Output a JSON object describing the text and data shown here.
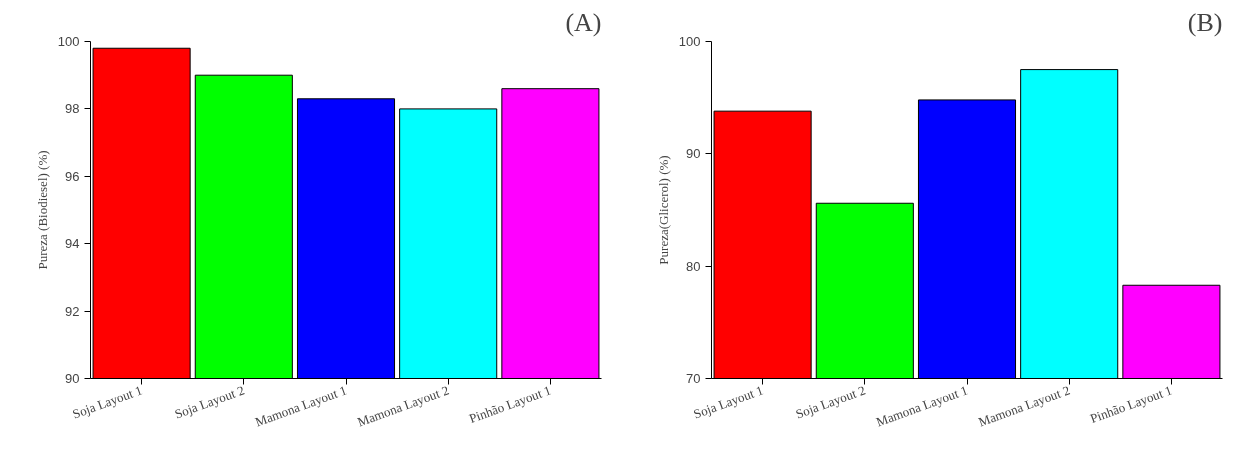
{
  "chart_data": [
    {
      "type": "bar",
      "title": "(A)",
      "ylabel": "Pureza (Biodiesel) (%)",
      "categories": [
        "Soja Layout 1",
        "Soja Layout 2",
        "Mamona Layout 1",
        "Mamona Layout 2",
        "Pinhão Layout 1"
      ],
      "values": [
        99.8,
        99.0,
        98.3,
        98.0,
        98.6
      ],
      "colors": [
        "#ff0000",
        "#00ff00",
        "#0000ff",
        "#00ffff",
        "#ff00ff"
      ],
      "ylim": [
        90,
        100
      ],
      "yticks": [
        90,
        92,
        94,
        96,
        98,
        100
      ],
      "grid": false
    },
    {
      "type": "bar",
      "title": "(B)",
      "ylabel": "Pureza(Glicerol) (%)",
      "categories": [
        "Soja Layout 1",
        "Soja Layout 2",
        "Mamona Layout 1",
        "Mamona Layout 2",
        "Pinhão Layout 1"
      ],
      "values": [
        93.8,
        85.6,
        94.8,
        97.5,
        78.3
      ],
      "colors": [
        "#ff0000",
        "#00ff00",
        "#0000ff",
        "#00ffff",
        "#ff00ff"
      ],
      "ylim": [
        70,
        100
      ],
      "yticks": [
        70,
        80,
        90,
        100
      ],
      "grid": false
    }
  ]
}
